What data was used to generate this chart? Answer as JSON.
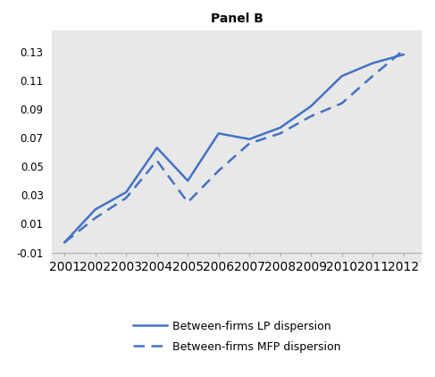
{
  "title": "Panel B",
  "years": [
    2001,
    2002,
    2003,
    2004,
    2005,
    2006,
    2007,
    2008,
    2009,
    2010,
    2011,
    2012
  ],
  "lp_dispersion": [
    -0.003,
    0.02,
    0.032,
    0.063,
    0.04,
    0.073,
    0.069,
    0.077,
    0.092,
    0.113,
    0.122,
    0.128
  ],
  "mfp_dispersion": [
    -0.003,
    0.014,
    0.028,
    0.054,
    0.025,
    0.047,
    0.066,
    0.073,
    0.085,
    0.094,
    0.113,
    0.131
  ],
  "lp_label": "Between-firms LP dispersion",
  "mfp_label": "Between-firms MFP dispersion",
  "ylim": [
    -0.018,
    0.145
  ],
  "xlim": [
    2000.6,
    2012.6
  ],
  "yticks": [
    -0.01,
    0.01,
    0.03,
    0.05,
    0.07,
    0.09,
    0.11,
    0.13
  ],
  "line_color": "#4472c4",
  "bg_color": "#e8e8e8",
  "fig_bg": "#ffffff",
  "title_fontsize": 10,
  "tick_fontsize": 8.5,
  "legend_fontsize": 9
}
